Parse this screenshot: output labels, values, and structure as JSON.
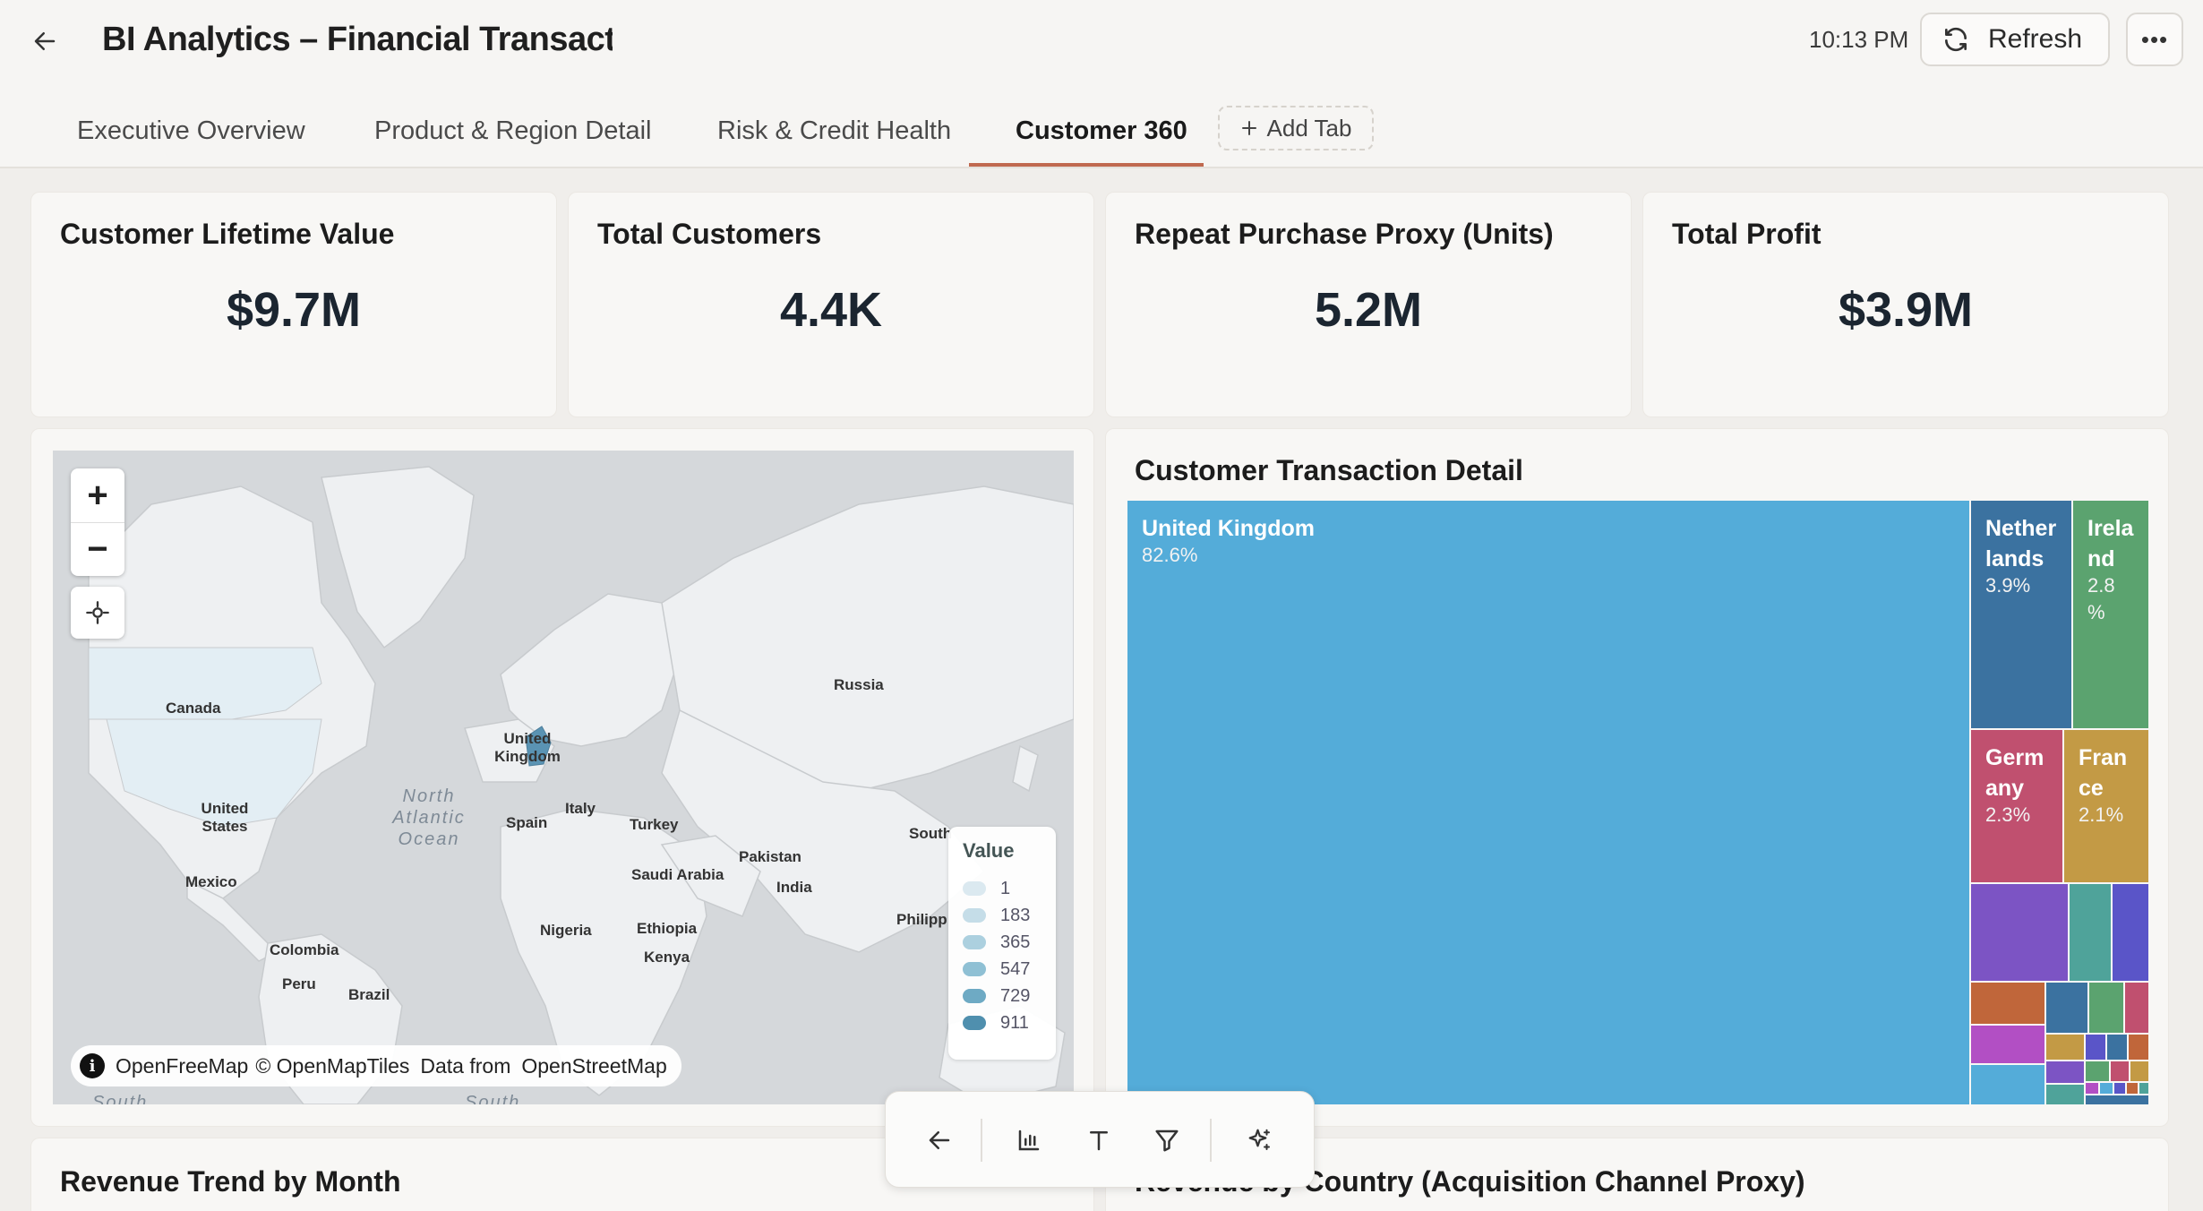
{
  "header": {
    "title": "BI Analytics – Financial Transaction",
    "time": "10:13 PM",
    "refresh_label": "Refresh",
    "more_label": "•••"
  },
  "tabs": [
    {
      "label": "Executive Overview",
      "active": false
    },
    {
      "label": "Product & Region Detail",
      "active": false
    },
    {
      "label": "Risk & Credit Health",
      "active": false
    },
    {
      "label": "Customer 360",
      "active": true
    }
  ],
  "add_tab_label": "Add Tab",
  "kpis": [
    {
      "title": "Customer Lifetime Value",
      "value": "$9.7M"
    },
    {
      "title": "Total Customers",
      "value": "4.4K"
    },
    {
      "title": "Repeat Purchase Proxy (Units)",
      "value": "5.2M"
    },
    {
      "title": "Total Profit",
      "value": "$3.9M"
    }
  ],
  "map": {
    "labels": {
      "canada": "Canada",
      "united_states": "United States",
      "mexico": "Mexico",
      "colombia": "Colombia",
      "peru": "Peru",
      "brazil": "Brazil",
      "united_kingdom": "United Kingdom",
      "spain": "Spain",
      "italy": "Italy",
      "turkey": "Turkey",
      "russia": "Russia",
      "pakistan": "Pakistan",
      "saudi_arabia": "Saudi Arabia",
      "india": "India",
      "nigeria": "Nigeria",
      "ethiopia": "Ethiopia",
      "kenya": "Kenya",
      "south_korea": "South",
      "philippines": "Philipp",
      "ocean": "North Atlantic Ocean",
      "south1": "South",
      "south2": "South"
    },
    "legend": {
      "title": "Value",
      "items": [
        {
          "label": "1",
          "color": "#dbe9f0"
        },
        {
          "label": "183",
          "color": "#c5dde8"
        },
        {
          "label": "365",
          "color": "#acd0df"
        },
        {
          "label": "547",
          "color": "#8fc0d4"
        },
        {
          "label": "729",
          "color": "#6eaac4"
        },
        {
          "label": "911",
          "color": "#4f8fae"
        }
      ]
    },
    "attribution": {
      "info": "i",
      "openfreemap": "OpenFreeMap",
      "openmaptiles": "© OpenMapTiles",
      "data_from": "Data from",
      "osm": "OpenStreetMap"
    }
  },
  "treemap": {
    "title": "Customer Transaction Detail",
    "cells": [
      {
        "label": "United Kingdom",
        "pct": "82.6%",
        "color": "#54acd9"
      },
      {
        "label": "Nether lands",
        "pct": "3.9%",
        "color": "#3b72a0"
      },
      {
        "label": "Irela nd",
        "pct": "2.8 %",
        "color": "#5ba36f"
      },
      {
        "label": "Germ any",
        "pct": "2.3%",
        "color": "#c0506f"
      },
      {
        "label": "Fran ce",
        "pct": "2.1%",
        "color": "#c39a45"
      }
    ]
  },
  "bottom_cards": {
    "left_title": "Revenue Trend by Month",
    "right_title": "Revenue by Country (Acquisition Channel Proxy)"
  },
  "toolbar": {
    "icons": [
      "back-icon",
      "bar-chart-icon",
      "text-icon",
      "filter-icon",
      "sparkle-icon"
    ]
  }
}
